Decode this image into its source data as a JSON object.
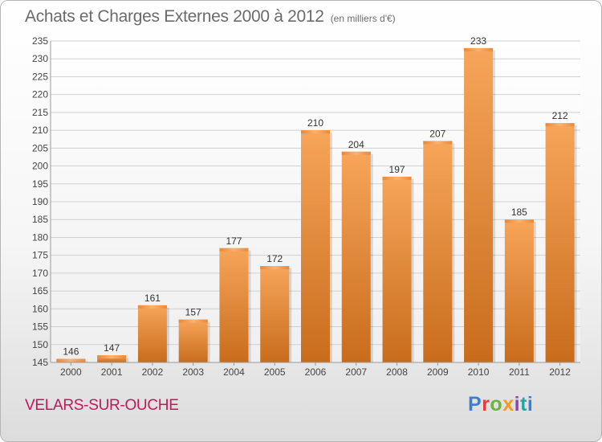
{
  "title": "Achats et Charges Externes 2000 à 2012",
  "unit": "(en milliers d'€)",
  "commune": "VELARS-SUR-OUCHE",
  "brand": "Proxiti",
  "colors": {
    "bar_light": "#f7a55a",
    "bar_dark": "#c86c1c",
    "grid": "#d0d0d0",
    "title": "#6b6b6b",
    "commune": "#c2185b"
  },
  "chart_data": {
    "type": "bar",
    "title": "Achats et Charges Externes 2000 à 2012",
    "categories": [
      "2000",
      "2001",
      "2002",
      "2003",
      "2004",
      "2005",
      "2006",
      "2007",
      "2008",
      "2009",
      "2010",
      "2011",
      "2012"
    ],
    "values": [
      146,
      147,
      161,
      157,
      177,
      172,
      210,
      204,
      197,
      207,
      233,
      185,
      212
    ],
    "ylim": [
      145,
      235
    ],
    "yticks": [
      145,
      150,
      155,
      160,
      165,
      170,
      175,
      180,
      185,
      190,
      195,
      200,
      205,
      210,
      215,
      220,
      225,
      230,
      235
    ],
    "grid": true,
    "data_labels": true
  }
}
